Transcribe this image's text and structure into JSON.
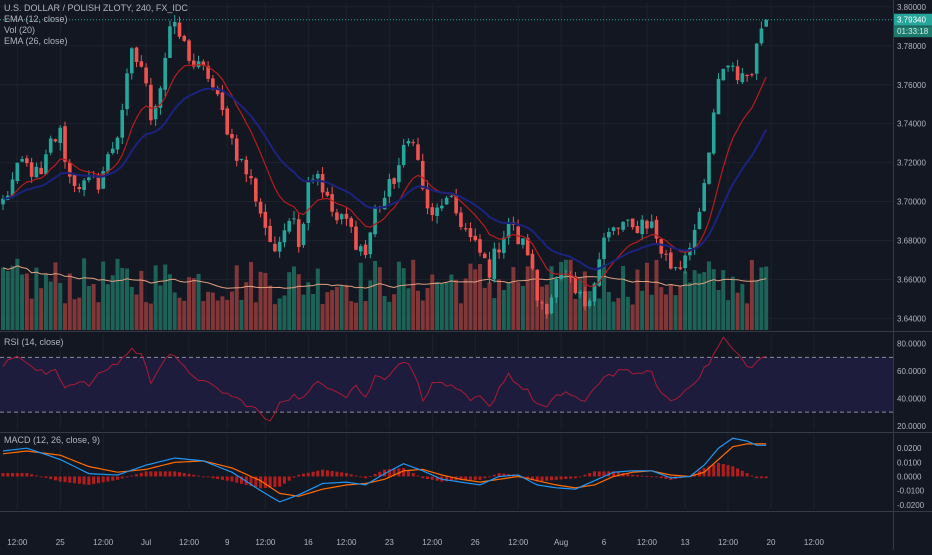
{
  "chart_data": {
    "symbol_title": "U.S. DOLLAR / POLISH ZLOTY, 240, FX_IDC",
    "indicators": [
      {
        "label": "EMA (12, close)",
        "color": "#b71c1c"
      },
      {
        "label": "Vol (20)",
        "color": "#cccccc"
      },
      {
        "label": "EMA (26, close)",
        "color": "#1a237e"
      }
    ],
    "price_pane": {
      "type": "candlestick",
      "ylim": [
        3.634,
        3.802
      ],
      "y_ticks": [
        3.64,
        3.66,
        3.68,
        3.7,
        3.72,
        3.74,
        3.76,
        3.78,
        3.8
      ],
      "y_tick_labels": [
        "3.64000",
        "3.66000",
        "3.68000",
        "3.70000",
        "3.72000",
        "3.74000",
        "3.76000",
        "3.78000",
        "3.80000"
      ],
      "last_price_label": "3.79340",
      "last_price": 3.7934,
      "countdown_label": "01:33:18",
      "countdown_level": 3.7875,
      "colors": {
        "up": "#26a69a",
        "down": "#ef5350",
        "ema12": "#b71c1c",
        "ema26": "#1a237e",
        "last_price_line": "#26a69a",
        "volume_ma": "#e0a080"
      },
      "close_anchors": [
        [
          0,
          3.7
        ],
        [
          4,
          3.72
        ],
        [
          8,
          3.712
        ],
        [
          10,
          3.73
        ],
        [
          12,
          3.735
        ],
        [
          14,
          3.712
        ],
        [
          17,
          3.708
        ],
        [
          20,
          3.71
        ],
        [
          22,
          3.722
        ],
        [
          24,
          3.735
        ],
        [
          27,
          3.775
        ],
        [
          29,
          3.77
        ],
        [
          31,
          3.745
        ],
        [
          33,
          3.76
        ],
        [
          35,
          3.79
        ],
        [
          37,
          3.785
        ],
        [
          40,
          3.77
        ],
        [
          43,
          3.765
        ],
        [
          46,
          3.745
        ],
        [
          49,
          3.725
        ],
        [
          52,
          3.71
        ],
        [
          54,
          3.695
        ],
        [
          56,
          3.68
        ],
        [
          57,
          3.67
        ],
        [
          59,
          3.69
        ],
        [
          61,
          3.695
        ],
        [
          62,
          3.675
        ],
        [
          64,
          3.712
        ],
        [
          66,
          3.715
        ],
        [
          68,
          3.7
        ],
        [
          70,
          3.69
        ],
        [
          72,
          3.69
        ],
        [
          74,
          3.68
        ],
        [
          76,
          3.673
        ],
        [
          78,
          3.695
        ],
        [
          80,
          3.702
        ],
        [
          82,
          3.712
        ],
        [
          84,
          3.725
        ],
        [
          86,
          3.735
        ],
        [
          88,
          3.705
        ],
        [
          90,
          3.69
        ],
        [
          92,
          3.7
        ],
        [
          94,
          3.698
        ],
        [
          96,
          3.69
        ],
        [
          98,
          3.68
        ],
        [
          100,
          3.673
        ],
        [
          102,
          3.665
        ],
        [
          104,
          3.678
        ],
        [
          106,
          3.69
        ],
        [
          108,
          3.68
        ],
        [
          110,
          3.675
        ],
        [
          112,
          3.65
        ],
        [
          114,
          3.647
        ],
        [
          116,
          3.658
        ],
        [
          118,
          3.66
        ],
        [
          120,
          3.652
        ],
        [
          122,
          3.648
        ],
        [
          124,
          3.66
        ],
        [
          126,
          3.68
        ],
        [
          128,
          3.685
        ],
        [
          130,
          3.688
        ],
        [
          132,
          3.685
        ],
        [
          134,
          3.69
        ],
        [
          136,
          3.688
        ],
        [
          138,
          3.675
        ],
        [
          140,
          3.667
        ],
        [
          142,
          3.668
        ],
        [
          144,
          3.68
        ],
        [
          146,
          3.69
        ],
        [
          148,
          3.725
        ],
        [
          150,
          3.76
        ],
        [
          151,
          3.77
        ],
        [
          153,
          3.77
        ],
        [
          155,
          3.762
        ],
        [
          157,
          3.77
        ],
        [
          159,
          3.79
        ],
        [
          160,
          3.7934
        ]
      ]
    },
    "volume_pane": {
      "type": "bar",
      "series_name": "Vol (20)"
    },
    "rsi_pane": {
      "type": "line",
      "label": "RSI (14, close)",
      "ylim": [
        17,
        87
      ],
      "y_ticks": [
        20,
        40,
        60,
        80
      ],
      "y_tick_labels": [
        "20.0000",
        "40.0000",
        "60.0000",
        "80.0000"
      ],
      "bands": [
        30,
        70
      ],
      "line_color": "#ab1a35",
      "band_fill": "#1e1c3c",
      "anchors": [
        [
          0,
          64
        ],
        [
          3,
          72
        ],
        [
          6,
          62
        ],
        [
          9,
          58
        ],
        [
          11,
          62
        ],
        [
          13,
          48
        ],
        [
          15,
          52
        ],
        [
          18,
          50
        ],
        [
          21,
          60
        ],
        [
          24,
          66
        ],
        [
          27,
          76
        ],
        [
          29,
          72
        ],
        [
          31,
          52
        ],
        [
          33,
          65
        ],
        [
          35,
          73
        ],
        [
          38,
          62
        ],
        [
          42,
          52
        ],
        [
          46,
          45
        ],
        [
          50,
          38
        ],
        [
          53,
          32
        ],
        [
          56,
          22
        ],
        [
          58,
          38
        ],
        [
          61,
          42
        ],
        [
          63,
          40
        ],
        [
          66,
          52
        ],
        [
          69,
          48
        ],
        [
          72,
          42
        ],
        [
          74,
          50
        ],
        [
          76,
          40
        ],
        [
          78,
          56
        ],
        [
          80,
          55
        ],
        [
          82,
          62
        ],
        [
          84,
          68
        ],
        [
          86,
          60
        ],
        [
          88,
          40
        ],
        [
          90,
          50
        ],
        [
          92,
          52
        ],
        [
          94,
          48
        ],
        [
          96,
          44
        ],
        [
          98,
          38
        ],
        [
          100,
          41
        ],
        [
          102,
          33
        ],
        [
          104,
          48
        ],
        [
          106,
          58
        ],
        [
          108,
          50
        ],
        [
          110,
          45
        ],
        [
          112,
          36
        ],
        [
          114,
          33
        ],
        [
          116,
          41
        ],
        [
          118,
          45
        ],
        [
          120,
          41
        ],
        [
          122,
          36
        ],
        [
          124,
          48
        ],
        [
          126,
          56
        ],
        [
          128,
          58
        ],
        [
          130,
          62
        ],
        [
          132,
          56
        ],
        [
          134,
          60
        ],
        [
          136,
          58
        ],
        [
          138,
          44
        ],
        [
          140,
          38
        ],
        [
          142,
          42
        ],
        [
          144,
          50
        ],
        [
          146,
          56
        ],
        [
          148,
          66
        ],
        [
          150,
          78
        ],
        [
          151,
          84
        ],
        [
          153,
          76
        ],
        [
          155,
          68
        ],
        [
          157,
          62
        ],
        [
          159,
          70
        ],
        [
          160,
          71
        ]
      ]
    },
    "macd_pane": {
      "type": "line+histogram",
      "label": "MACD (12, 26, close, 9)",
      "ylim": [
        -0.023,
        0.03
      ],
      "y_ticks": [
        -0.02,
        -0.01,
        0,
        0.01,
        0.02
      ],
      "y_tick_labels": [
        "-0.0200",
        "-0.0100",
        "0.0000",
        "0.0100",
        "0.0200"
      ],
      "colors": {
        "macd": "#2196f3",
        "signal": "#ff6d00",
        "histogram": "#b71c1c"
      },
      "macd_anchors": [
        [
          0,
          0.018
        ],
        [
          5,
          0.02
        ],
        [
          12,
          0.012
        ],
        [
          18,
          0.002
        ],
        [
          24,
          0.001
        ],
        [
          30,
          0.008
        ],
        [
          36,
          0.013
        ],
        [
          42,
          0.011
        ],
        [
          48,
          0.003
        ],
        [
          54,
          -0.01
        ],
        [
          58,
          -0.018
        ],
        [
          62,
          -0.013
        ],
        [
          67,
          -0.005
        ],
        [
          72,
          -0.004
        ],
        [
          76,
          -0.006
        ],
        [
          80,
          0.002
        ],
        [
          84,
          0.009
        ],
        [
          88,
          0.004
        ],
        [
          92,
          -0.002
        ],
        [
          96,
          -0.004
        ],
        [
          100,
          -0.006
        ],
        [
          104,
          0.0
        ],
        [
          108,
          0.001
        ],
        [
          112,
          -0.006
        ],
        [
          116,
          -0.008
        ],
        [
          120,
          -0.009
        ],
        [
          124,
          -0.003
        ],
        [
          128,
          0.003
        ],
        [
          132,
          0.004
        ],
        [
          136,
          0.004
        ],
        [
          140,
          -0.001
        ],
        [
          144,
          0.0
        ],
        [
          147,
          0.008
        ],
        [
          150,
          0.02
        ],
        [
          153,
          0.027
        ],
        [
          156,
          0.025
        ],
        [
          158,
          0.022
        ],
        [
          160,
          0.022
        ]
      ],
      "signal_anchors": [
        [
          0,
          0.016
        ],
        [
          5,
          0.018
        ],
        [
          12,
          0.015
        ],
        [
          18,
          0.007
        ],
        [
          24,
          0.003
        ],
        [
          30,
          0.005
        ],
        [
          36,
          0.01
        ],
        [
          42,
          0.011
        ],
        [
          48,
          0.006
        ],
        [
          54,
          -0.003
        ],
        [
          58,
          -0.012
        ],
        [
          62,
          -0.014
        ],
        [
          67,
          -0.009
        ],
        [
          72,
          -0.006
        ],
        [
          76,
          -0.005
        ],
        [
          80,
          -0.002
        ],
        [
          84,
          0.004
        ],
        [
          88,
          0.005
        ],
        [
          92,
          0.001
        ],
        [
          96,
          -0.002
        ],
        [
          100,
          -0.004
        ],
        [
          104,
          -0.002
        ],
        [
          108,
          0.0
        ],
        [
          112,
          -0.003
        ],
        [
          116,
          -0.006
        ],
        [
          120,
          -0.008
        ],
        [
          124,
          -0.006
        ],
        [
          128,
          0.0
        ],
        [
          132,
          0.003
        ],
        [
          136,
          0.004
        ],
        [
          140,
          0.001
        ],
        [
          144,
          0.0
        ],
        [
          147,
          0.003
        ],
        [
          150,
          0.012
        ],
        [
          153,
          0.021
        ],
        [
          156,
          0.023
        ],
        [
          158,
          0.023
        ],
        [
          160,
          0.023
        ]
      ]
    },
    "x_axis": {
      "ticks": [
        {
          "bar": 3,
          "label": "12:00"
        },
        {
          "bar": 12,
          "label": "25"
        },
        {
          "bar": 21,
          "label": "12:00"
        },
        {
          "bar": 30,
          "label": "Jul"
        },
        {
          "bar": 39,
          "label": "12:00"
        },
        {
          "bar": 47,
          "label": "9"
        },
        {
          "bar": 55,
          "label": "12:00"
        },
        {
          "bar": 64,
          "label": "16"
        },
        {
          "bar": 72,
          "label": "12:00"
        },
        {
          "bar": 81,
          "label": "23"
        },
        {
          "bar": 90,
          "label": "12:00"
        },
        {
          "bar": 99,
          "label": "26"
        },
        {
          "bar": 108,
          "label": "12:00"
        },
        {
          "bar": 117,
          "label": "Aug"
        },
        {
          "bar": 126,
          "label": "6"
        },
        {
          "bar": 135,
          "label": "12:00"
        },
        {
          "bar": 143,
          "label": "13"
        },
        {
          "bar": 152,
          "label": "12:00"
        },
        {
          "bar": 161,
          "label": "20"
        },
        {
          "bar": 170,
          "label": "12:00"
        }
      ]
    }
  }
}
